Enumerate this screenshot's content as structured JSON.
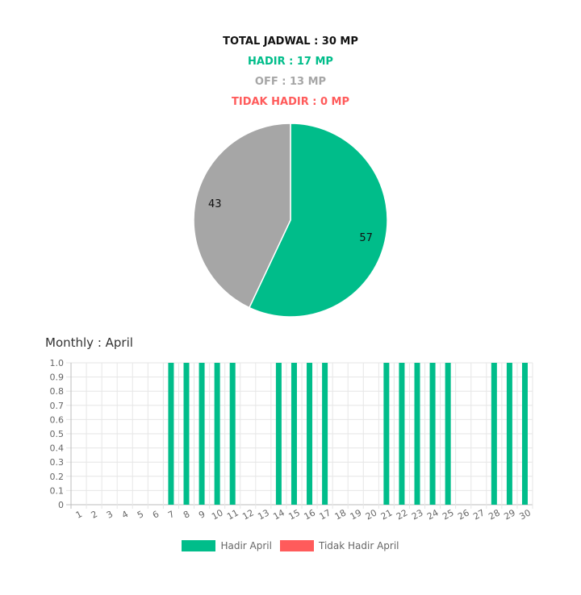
{
  "summary": {
    "total": "TOTAL JADWAL : 30 MP",
    "hadir": "HADIR : 17 MP",
    "off": "OFF : 13 MP",
    "tidak_hadir": "TIDAK HADIR : 0 MP"
  },
  "colors": {
    "hadir": "#00bd8a",
    "off": "#a6a6a6",
    "tidak_hadir": "#ff5b5b"
  },
  "monthly_title": "Monthly : April",
  "legend": {
    "hadir": "Hadir April",
    "tidak_hadir": "Tidak Hadir April"
  },
  "chart_data": [
    {
      "type": "pie",
      "labels": [
        "Hadir",
        "Off"
      ],
      "values": [
        57,
        43
      ],
      "colors": [
        "#00bd8a",
        "#a6a6a6"
      ]
    },
    {
      "type": "bar",
      "categories": [
        "1",
        "2",
        "3",
        "4",
        "5",
        "6",
        "7",
        "8",
        "9",
        "10",
        "11",
        "12",
        "13",
        "14",
        "15",
        "16",
        "17",
        "18",
        "19",
        "20",
        "21",
        "22",
        "23",
        "24",
        "25",
        "26",
        "27",
        "28",
        "29",
        "30"
      ],
      "series": [
        {
          "name": "Hadir April",
          "values": [
            0,
            0,
            0,
            0,
            0,
            0,
            1,
            1,
            1,
            1,
            1,
            0,
            0,
            1,
            1,
            1,
            1,
            0,
            0,
            0,
            1,
            1,
            1,
            1,
            1,
            0,
            0,
            1,
            1,
            1
          ]
        },
        {
          "name": "Tidak Hadir April",
          "values": [
            0,
            0,
            0,
            0,
            0,
            0,
            0,
            0,
            0,
            0,
            0,
            0,
            0,
            0,
            0,
            0,
            0,
            0,
            0,
            0,
            0,
            0,
            0,
            0,
            0,
            0,
            0,
            0,
            0,
            0
          ]
        }
      ],
      "ylim": [
        0,
        1.0
      ],
      "yticks": [
        "0",
        "0.1",
        "0.2",
        "0.3",
        "0.4",
        "0.5",
        "0.6",
        "0.7",
        "0.8",
        "0.9",
        "1.0"
      ],
      "grid": true,
      "legend": "bottom"
    }
  ]
}
